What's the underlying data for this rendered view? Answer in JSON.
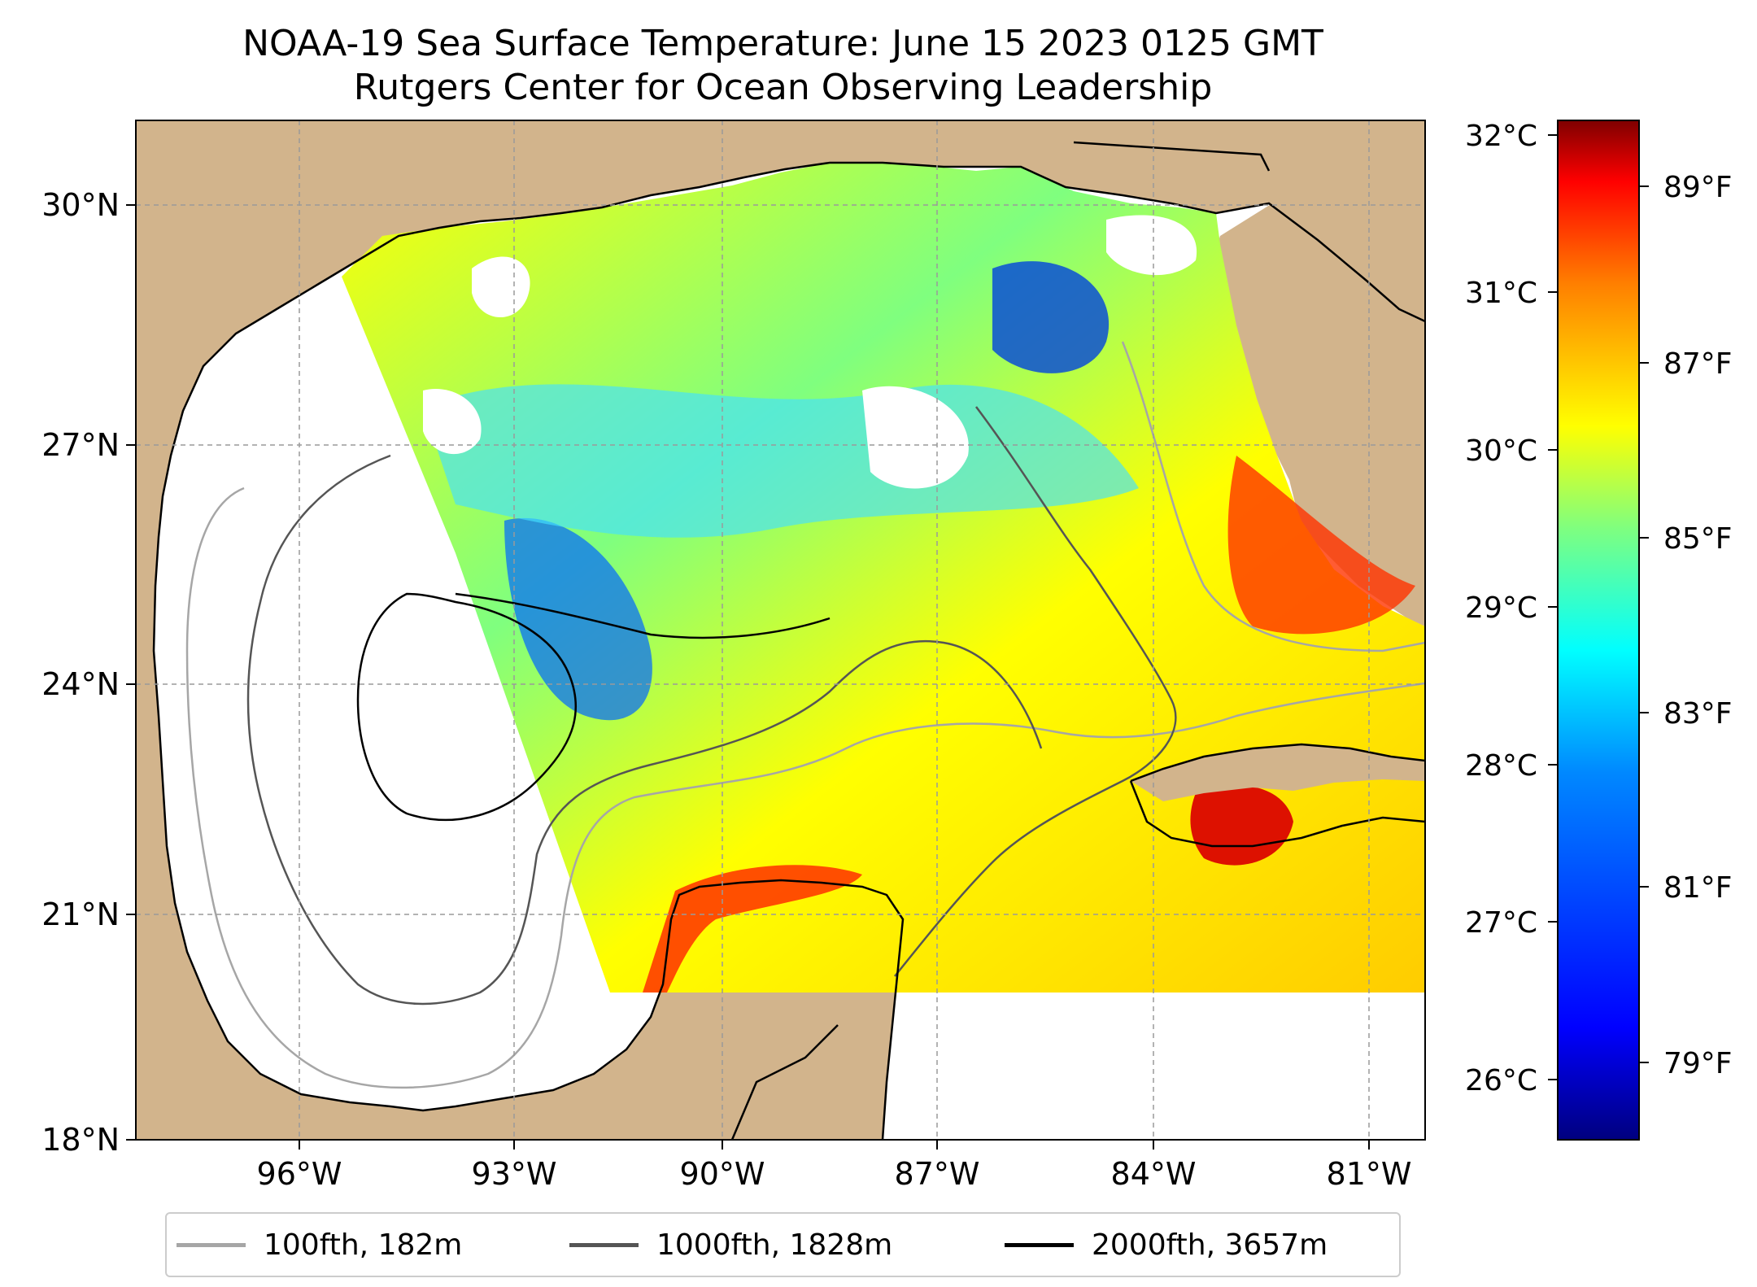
{
  "title": {
    "line1": "NOAA-19 Sea Surface Temperature: June 15 2023 0125 GMT",
    "line2": "Rutgers Center for Ocean Observing Leadership"
  },
  "map": {
    "lat_ticks": [
      "30°N",
      "27°N",
      "24°N",
      "21°N",
      "18°N"
    ],
    "lon_ticks": [
      "96°W",
      "93°W",
      "90°W",
      "87°W",
      "84°W",
      "81°W"
    ],
    "land_color": "#d2b48c",
    "gridlines": true
  },
  "colorbar": {
    "colormap": "jet",
    "celsius_ticks": [
      "32°C",
      "31°C",
      "30°C",
      "29°C",
      "28°C",
      "27°C",
      "26°C"
    ],
    "fahrenheit_ticks": [
      "89°F",
      "87°F",
      "85°F",
      "83°F",
      "81°F",
      "79°F"
    ],
    "colors": [
      "#00007f",
      "#0000ff",
      "#007fff",
      "#00ffff",
      "#7fff7f",
      "#ffff00",
      "#ff7f00",
      "#ff0000",
      "#7f0000"
    ]
  },
  "legend": [
    {
      "label": "100fth, 182m",
      "color": "#a6a6a6"
    },
    {
      "label": "1000fth, 1828m",
      "color": "#555555"
    },
    {
      "label": "2000fth, 3657m",
      "color": "#000000"
    }
  ]
}
